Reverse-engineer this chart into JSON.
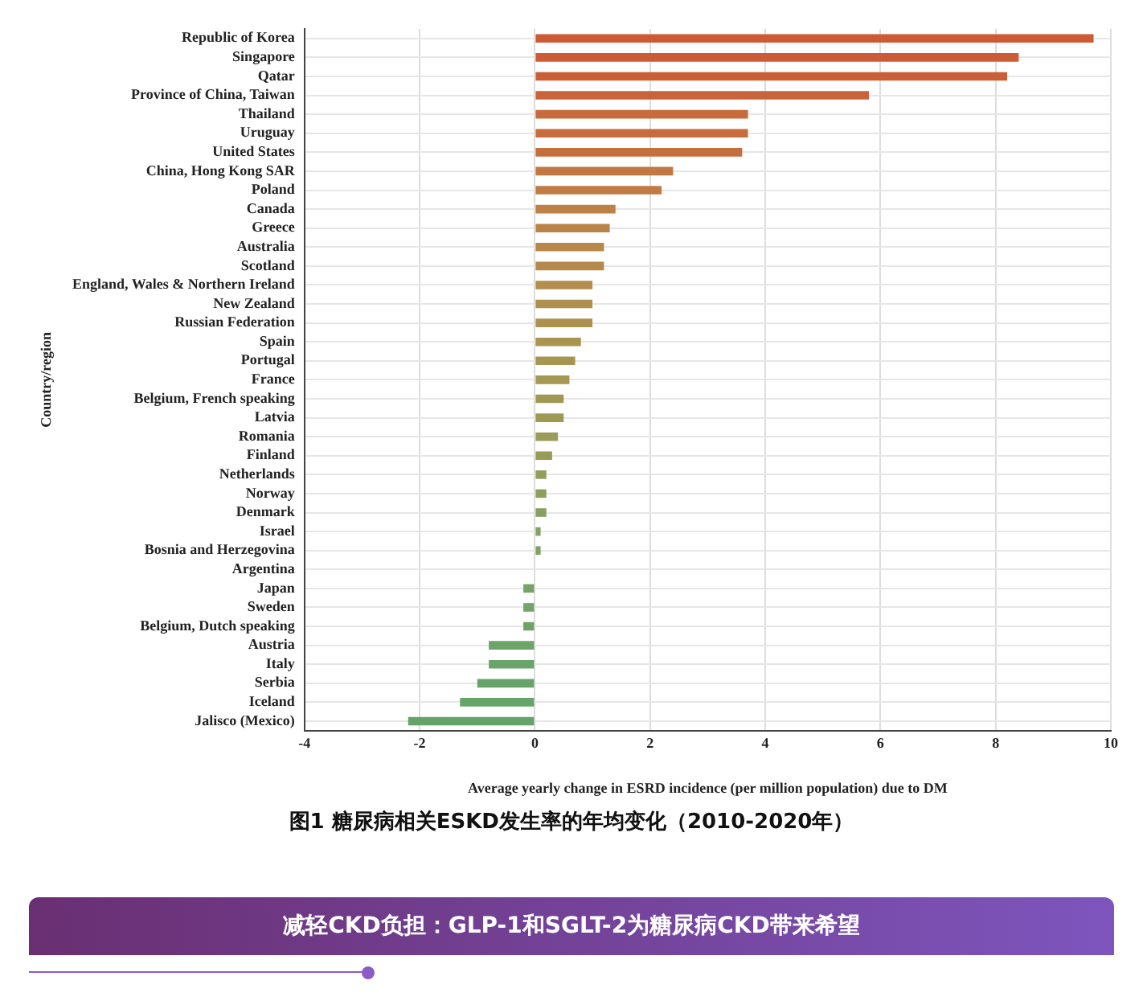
{
  "chart_data": {
    "type": "bar",
    "orientation": "horizontal",
    "xlabel": "Average yearly change in ESRD incidence (per million population) due to DM",
    "ylabel": "Country/region",
    "categories": [
      "Republic of Korea",
      "Singapore",
      "Qatar",
      "Province of China, Taiwan",
      "Thailand",
      "Uruguay",
      "United States",
      "China, Hong Kong SAR",
      "Poland",
      "Canada",
      "Greece",
      "Australia",
      "Scotland",
      "England, Wales & Northern Ireland",
      "New Zealand",
      "Russian Federation",
      "Spain",
      "Portugal",
      "France",
      "Belgium, French speaking",
      "Latvia",
      "Romania",
      "Finland",
      "Netherlands",
      "Norway",
      "Denmark",
      "Israel",
      "Bosnia and Herzegovina",
      "Argentina",
      "Japan",
      "Sweden",
      "Belgium, Dutch speaking",
      "Austria",
      "Italy",
      "Serbia",
      "Iceland",
      "Jalisco (Mexico)"
    ],
    "values": [
      9.7,
      8.4,
      8.2,
      5.8,
      3.7,
      3.7,
      3.6,
      2.4,
      2.2,
      1.4,
      1.3,
      1.2,
      1.2,
      1.0,
      1.0,
      1.0,
      0.8,
      0.7,
      0.6,
      0.5,
      0.5,
      0.4,
      0.3,
      0.2,
      0.2,
      0.2,
      0.1,
      0.1,
      0,
      -0.2,
      -0.2,
      -0.2,
      -0.8,
      -0.8,
      -1.0,
      -1.3,
      -2.2
    ],
    "colors": [
      "#cc5a35",
      "#cc5c36",
      "#cb5e37",
      "#c9643a",
      "#c86b3c",
      "#c76c3d",
      "#c66f3e",
      "#c27843",
      "#c07b45",
      "#bd8047",
      "#ba8449",
      "#b8874a",
      "#b5894b",
      "#b28d4c",
      "#b0904e",
      "#ad924f",
      "#aa9450",
      "#a79651",
      "#a49852",
      "#a19953",
      "#9e9a55",
      "#9a9c57",
      "#969d59",
      "#929e5b",
      "#8d9f5d",
      "#88a05f",
      "#84a161",
      "#7fa263",
      "#7aa265",
      "#76a366",
      "#72a367",
      "#6ea368",
      "#6ca46a",
      "#6aa46a",
      "#68a46a",
      "#66a46a",
      "#64a46a"
    ],
    "xlim": [
      -4,
      10
    ],
    "xticks": [
      -4,
      -2,
      0,
      2,
      4,
      6,
      8,
      10
    ],
    "grid": true,
    "legend": false,
    "annotations": [
      "图1 糖尿病相关ESKD发生率的年均变化（2010-2020年）",
      "减轻CKD负担：GLP-1和SGLT-2为糖尿病CKD带来希望"
    ]
  }
}
